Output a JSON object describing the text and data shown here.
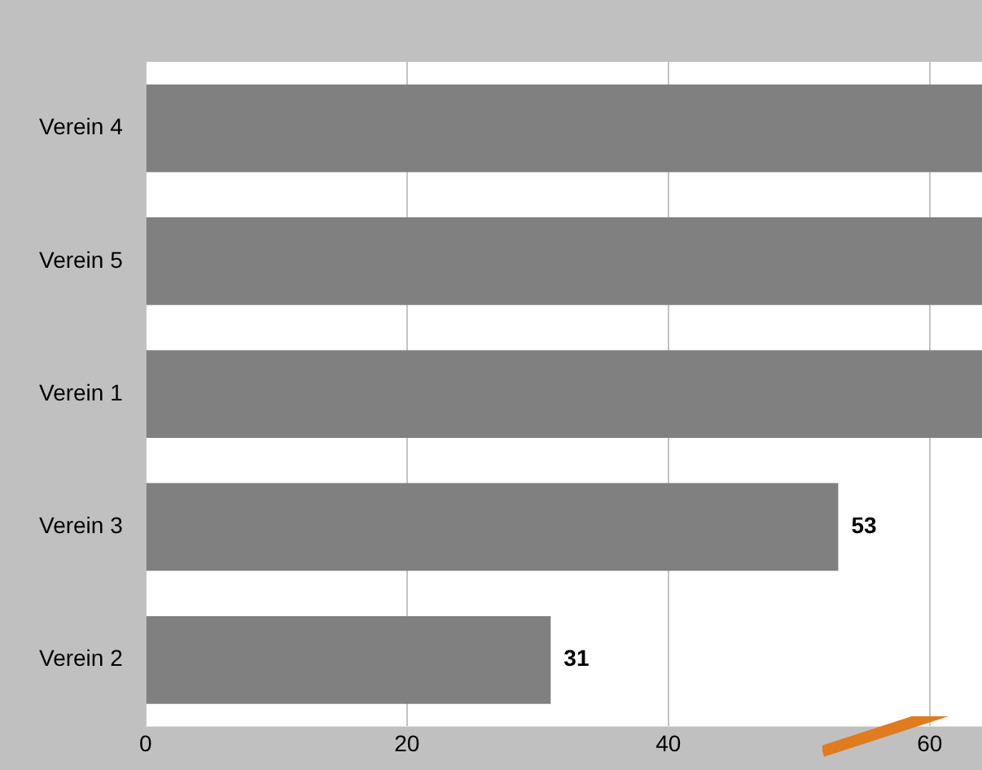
{
  "chart_data": {
    "type": "bar",
    "orientation": "horizontal",
    "categories": [
      "Verein 4",
      "Verein 5",
      "Verein 1",
      "Verein 3",
      "Verein 2"
    ],
    "values": [
      64,
      64,
      64,
      53,
      31
    ],
    "value_labels": [
      null,
      null,
      null,
      "53",
      "31"
    ],
    "color": "#808080",
    "xlim": [
      0,
      64
    ],
    "xticks": [
      0,
      20,
      40,
      60
    ],
    "grid": "x"
  }
}
